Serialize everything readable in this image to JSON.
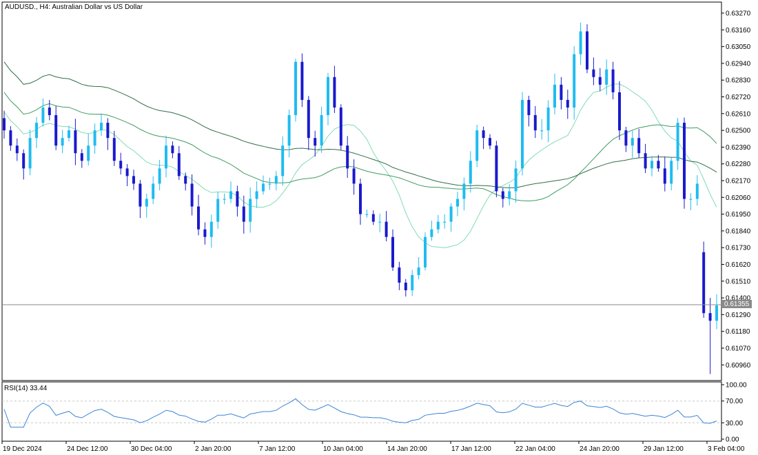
{
  "header": {
    "title": "AUDUSD., H4:  Australian Dollar vs US Dollar"
  },
  "price_axis": {
    "ticks": [
      "0.63270",
      "0.63160",
      "0.63050",
      "0.62940",
      "0.62830",
      "0.62720",
      "0.62610",
      "0.62500",
      "0.62390",
      "0.62280",
      "0.62170",
      "0.62060",
      "0.61950",
      "0.61840",
      "0.61730",
      "0.61620",
      "0.61510",
      "0.61400",
      "0.61290",
      "0.61180",
      "0.61070",
      "0.60960"
    ],
    "current_price_label": "0.61355"
  },
  "rsi": {
    "label": "RSI(14) 33.44",
    "ticks": [
      "100.00",
      "70.00",
      "30.00",
      "0.00"
    ]
  },
  "time_axis": {
    "labels": [
      "19 Dec 2024",
      "24 Dec 12:00",
      "30 Dec 04:00",
      "2 Jan 20:00",
      "7 Jan 12:00",
      "10 Jan 04:00",
      "14 Jan 20:00",
      "17 Jan 12:00",
      "22 Jan 04:00",
      "24 Jan 20:00",
      "29 Jan 12:00",
      "3 Feb 04:00"
    ]
  },
  "colors": {
    "bull": "#1fbcf0",
    "bear": "#1a1acd",
    "ma_fast": "#7fdcb3",
    "ma_mid": "#3e9b5f",
    "ma_slow": "#2f6e47",
    "rsi_line": "#3a84d6",
    "grid": "#c8c8c8"
  },
  "chart_data": {
    "type": "candlestick",
    "symbol": "AUDUSD.",
    "timeframe": "H4",
    "y_range": [
      0.6085,
      0.6338
    ],
    "current_price": 0.61355,
    "candles_close": [
      0.625,
      0.624,
      0.6235,
      0.6225,
      0.6245,
      0.6255,
      0.6265,
      0.626,
      0.624,
      0.6245,
      0.625,
      0.6235,
      0.623,
      0.624,
      0.625,
      0.6255,
      0.6245,
      0.623,
      0.6225,
      0.622,
      0.6215,
      0.62,
      0.6205,
      0.6215,
      0.6225,
      0.624,
      0.6235,
      0.622,
      0.6215,
      0.62,
      0.6185,
      0.618,
      0.619,
      0.6205,
      0.6205,
      0.621,
      0.62,
      0.619,
      0.6205,
      0.621,
      0.6215,
      0.6215,
      0.622,
      0.624,
      0.626,
      0.6295,
      0.627,
      0.6245,
      0.624,
      0.626,
      0.6285,
      0.6265,
      0.624,
      0.6225,
      0.6215,
      0.6195,
      0.6195,
      0.619,
      0.619,
      0.618,
      0.616,
      0.615,
      0.6145,
      0.6155,
      0.616,
      0.618,
      0.6185,
      0.619,
      0.619,
      0.62,
      0.6205,
      0.6215,
      0.623,
      0.625,
      0.6245,
      0.624,
      0.621,
      0.6205,
      0.621,
      0.6225,
      0.627,
      0.626,
      0.625,
      0.625,
      0.6265,
      0.628,
      0.627,
      0.6265,
      0.63,
      0.6315,
      0.629,
      0.6285,
      0.628,
      0.629,
      0.6275,
      0.625,
      0.624,
      0.6245,
      0.6235,
      0.6225,
      0.623,
      0.6225,
      0.6215,
      0.623,
      0.6255,
      0.6205,
      0.6205,
      0.6215,
      0.613,
      0.6125,
      0.6135
    ]
  }
}
